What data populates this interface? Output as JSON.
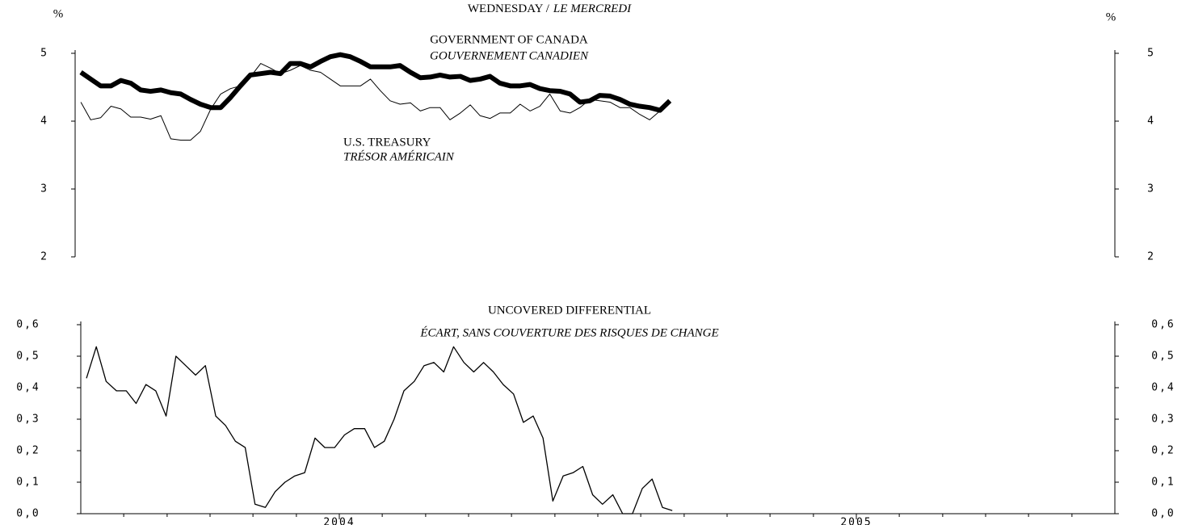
{
  "chart_data": [
    {
      "type": "line",
      "title": "WEDNESDAY /",
      "subtitle": "LE MERCREDI",
      "y_unit": "%",
      "x": [
        2003.511,
        2003.53,
        2003.549,
        2003.569,
        2003.588,
        2003.607,
        2003.626,
        2003.645,
        2003.665,
        2003.684,
        2003.703,
        2003.722,
        2003.741,
        2003.761,
        2003.78,
        2003.799,
        2003.818,
        2003.837,
        2003.857,
        2003.876,
        2003.895,
        2003.914,
        2003.933,
        2003.953,
        2003.972,
        2003.991,
        2004.01,
        2004.029,
        2004.049,
        2004.068,
        2004.087,
        2004.106,
        2004.125,
        2004.145,
        2004.164,
        2004.183,
        2004.202,
        2004.221,
        2004.241,
        2004.26,
        2004.279,
        2004.298,
        2004.317,
        2004.337,
        2004.356,
        2004.375,
        2004.394,
        2004.413,
        2004.433,
        2004.452,
        2004.471,
        2004.49,
        2004.509,
        2004.529,
        2004.548,
        2004.567,
        2004.586,
        2004.605,
        2004.625,
        2004.644
      ],
      "xlim": [
        2003.5,
        2005.5
      ],
      "ylim": [
        2,
        5
      ],
      "yticks": [
        2,
        3,
        4,
        5
      ],
      "series": [
        {
          "name": "GOVERNMENT OF CANADA",
          "name_fr": "GOUVERNEMENT CANADIEN",
          "color": "#000000",
          "values": [
            4.72,
            4.62,
            4.52,
            4.52,
            4.6,
            4.56,
            4.46,
            4.44,
            4.46,
            4.42,
            4.4,
            4.32,
            4.25,
            4.2,
            4.2,
            4.35,
            4.52,
            4.68,
            4.7,
            4.72,
            4.7,
            4.85,
            4.85,
            4.8,
            4.88,
            4.95,
            4.98,
            4.95,
            4.88,
            4.8,
            4.8,
            4.8,
            4.82,
            4.72,
            4.64,
            4.65,
            4.68,
            4.65,
            4.66,
            4.6,
            4.62,
            4.66,
            4.56,
            4.52,
            4.52,
            4.54,
            4.48,
            4.45,
            4.44,
            4.4,
            4.28,
            4.3,
            4.38,
            4.37,
            4.32,
            4.25,
            4.22,
            4.2,
            4.16,
            4.3
          ]
        },
        {
          "name": "U.S. TREASURY",
          "name_fr": "TRÉSOR AMÉRICAIN",
          "color": "#000000",
          "values": [
            4.28,
            4.02,
            4.05,
            4.22,
            4.18,
            4.06,
            4.06,
            4.03,
            4.08,
            3.74,
            3.72,
            3.72,
            3.85,
            4.18,
            4.4,
            4.48,
            4.52,
            4.65,
            4.85,
            4.78,
            4.7,
            4.75,
            4.82,
            4.75,
            4.72,
            4.62,
            4.52,
            4.52,
            4.52,
            4.62,
            4.45,
            4.3,
            4.25,
            4.27,
            4.15,
            4.2,
            4.2,
            4.02,
            4.12,
            4.24,
            4.08,
            4.04,
            4.12,
            4.12,
            4.25,
            4.15,
            4.22,
            4.4,
            4.15,
            4.12,
            4.2,
            4.32,
            4.3,
            4.28,
            4.2,
            4.2,
            4.1,
            4.02,
            4.15,
            4.3
          ]
        }
      ]
    },
    {
      "type": "line",
      "title": "UNCOVERED DIFFERENTIAL",
      "subtitle": "ÉCART, SANS COUVERTURE DES RISQUES DE CHANGE",
      "x": [
        2003.511,
        2003.53,
        2003.549,
        2003.569,
        2003.588,
        2003.607,
        2003.626,
        2003.645,
        2003.665,
        2003.684,
        2003.703,
        2003.722,
        2003.741,
        2003.761,
        2003.78,
        2003.799,
        2003.818,
        2003.837,
        2003.857,
        2003.876,
        2003.895,
        2003.914,
        2003.933,
        2003.953,
        2003.972,
        2003.991,
        2004.01,
        2004.029,
        2004.049,
        2004.068,
        2004.087,
        2004.106,
        2004.125,
        2004.145,
        2004.164,
        2004.183,
        2004.202,
        2004.221,
        2004.241,
        2004.26,
        2004.279,
        2004.298,
        2004.317,
        2004.337,
        2004.356,
        2004.375,
        2004.394,
        2004.413,
        2004.433,
        2004.452,
        2004.471,
        2004.49,
        2004.509,
        2004.529,
        2004.548,
        2004.567,
        2004.586,
        2004.605,
        2004.625,
        2004.644
      ],
      "xlim": [
        2003.5,
        2005.5
      ],
      "xticks": [
        2004,
        2005
      ],
      "xminorticks": [
        2003.583,
        2003.667,
        2003.75,
        2003.833,
        2003.917,
        2004.083,
        2004.167,
        2004.25,
        2004.333,
        2004.417,
        2004.5,
        2004.583,
        2004.667,
        2004.75,
        2004.833,
        2004.917,
        2005.083,
        2005.167,
        2005.25,
        2005.333,
        2005.417
      ],
      "ylim": [
        0,
        0.6
      ],
      "yticks": [
        {
          "value": 0,
          "label": "0,0"
        },
        {
          "value": 0.1,
          "label": "0,1"
        },
        {
          "value": 0.2,
          "label": "0,2"
        },
        {
          "value": 0.3,
          "label": "0,3"
        },
        {
          "value": 0.4,
          "label": "0,4"
        },
        {
          "value": 0.5,
          "label": "0,5"
        },
        {
          "value": 0.6,
          "label": "0,6"
        }
      ],
      "series": [
        {
          "color": "#000000",
          "values": [
            0.43,
            0.53,
            0.42,
            0.39,
            0.39,
            0.35,
            0.41,
            0.39,
            0.31,
            0.5,
            0.47,
            0.44,
            0.47,
            0.31,
            0.28,
            0.23,
            0.21,
            0.03,
            0.02,
            0.07,
            0.1,
            0.12,
            0.13,
            0.24,
            0.21,
            0.21,
            0.25,
            0.27,
            0.27,
            0.21,
            0.23,
            0.3,
            0.39,
            0.42,
            0.47,
            0.48,
            0.45,
            0.53,
            0.48,
            0.45,
            0.48,
            0.45,
            0.41,
            0.38,
            0.29,
            0.31,
            0.24,
            0.04,
            0.12,
            0.13,
            0.15,
            0.06,
            0.03,
            0.06,
            0.0,
            0.0,
            0.08,
            0.11,
            0.02,
            0.01
          ]
        }
      ]
    }
  ]
}
